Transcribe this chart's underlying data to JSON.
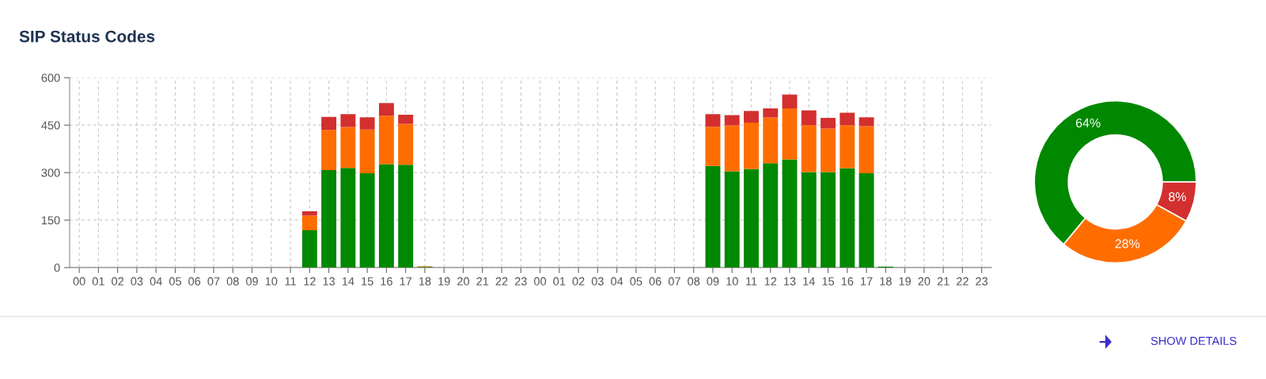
{
  "chart_data": [
    {
      "type": "bar",
      "title": "SIP Status Codes",
      "stacked": true,
      "grid": true,
      "categories": [
        "00",
        "01",
        "02",
        "03",
        "04",
        "05",
        "06",
        "07",
        "08",
        "09",
        "10",
        "11",
        "12",
        "13",
        "14",
        "15",
        "16",
        "17",
        "18",
        "19",
        "20",
        "21",
        "22",
        "23",
        "00",
        "01",
        "02",
        "03",
        "04",
        "05",
        "06",
        "07",
        "08",
        "09",
        "10",
        "11",
        "12",
        "13",
        "14",
        "15",
        "16",
        "17",
        "18",
        "19",
        "20",
        "21",
        "22",
        "23"
      ],
      "series": [
        {
          "color": "#008800",
          "values": [
            0,
            0,
            0,
            0,
            0,
            0,
            0,
            0,
            0,
            0,
            0,
            0,
            118,
            308,
            315,
            298,
            327,
            325,
            2,
            0,
            0,
            0,
            0,
            0,
            0,
            0,
            0,
            0,
            0,
            0,
            0,
            0,
            0,
            321,
            304,
            312,
            330,
            342,
            302,
            302,
            314,
            298,
            3,
            0,
            0,
            0,
            0,
            0
          ]
        },
        {
          "color": "#ff6d00",
          "values": [
            0,
            0,
            0,
            0,
            0,
            0,
            0,
            0,
            0,
            0,
            0,
            0,
            46,
            127,
            129,
            138,
            153,
            129,
            2,
            0,
            0,
            0,
            0,
            0,
            0,
            0,
            0,
            0,
            0,
            0,
            0,
            0,
            0,
            124,
            145,
            146,
            144,
            161,
            148,
            137,
            136,
            149,
            0,
            0,
            0,
            0,
            0,
            0
          ]
        },
        {
          "color": "#d32f2f",
          "values": [
            0,
            0,
            0,
            0,
            0,
            0,
            0,
            0,
            0,
            0,
            0,
            0,
            14,
            41,
            41,
            39,
            40,
            29,
            0,
            0,
            0,
            0,
            0,
            0,
            0,
            0,
            0,
            0,
            0,
            0,
            0,
            0,
            0,
            40,
            33,
            37,
            29,
            44,
            47,
            34,
            39,
            28,
            0,
            0,
            0,
            0,
            0,
            0
          ]
        }
      ],
      "ylim": [
        0,
        600
      ],
      "yticks": [
        0,
        150,
        300,
        450,
        600
      ],
      "annotations": [
        "SHOW DETAILS"
      ]
    },
    {
      "type": "donut",
      "categories": [
        null,
        null,
        null
      ],
      "values": [
        64,
        28,
        8
      ],
      "colors": [
        "#008800",
        "#ff6d00",
        "#d32f2f"
      ],
      "value_labels": [
        "64%",
        "28%",
        "8%"
      ]
    }
  ]
}
